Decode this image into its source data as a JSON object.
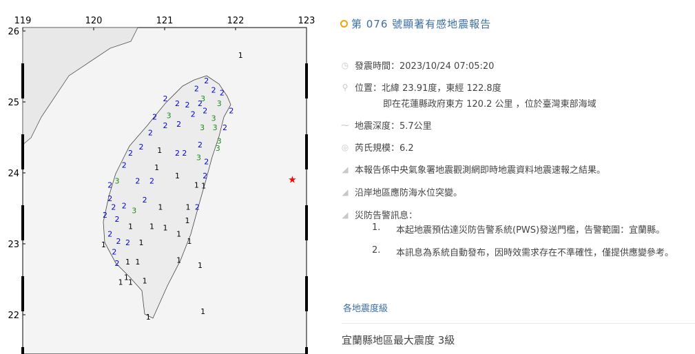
{
  "map": {
    "lon_ticks": [
      "119",
      "120",
      "121",
      "122",
      "123"
    ],
    "lat_ticks": [
      "26",
      "25",
      "24",
      "23",
      "22"
    ],
    "epicenter": {
      "lon": 122.8,
      "lat": 23.91,
      "color": "#ff0000"
    },
    "intensity_colors": {
      "1": "#000000",
      "2": "#0000dd",
      "3": "#1a8a1a"
    },
    "stations": [
      [
        122.07,
        25.66,
        1
      ],
      [
        121.59,
        25.3,
        2
      ],
      [
        121.45,
        25.19,
        2
      ],
      [
        121.69,
        25.17,
        2
      ],
      [
        121.81,
        25.13,
        2
      ],
      [
        121.54,
        25.05,
        3
      ],
      [
        121.01,
        25.05,
        2
      ],
      [
        121.18,
        24.98,
        2
      ],
      [
        121.32,
        24.96,
        2
      ],
      [
        121.5,
        24.98,
        2
      ],
      [
        121.77,
        24.98,
        3
      ],
      [
        121.94,
        24.88,
        2
      ],
      [
        121.06,
        24.81,
        3
      ],
      [
        120.86,
        24.79,
        2
      ],
      [
        121.01,
        24.67,
        2
      ],
      [
        121.2,
        24.69,
        2
      ],
      [
        121.4,
        24.83,
        2
      ],
      [
        121.57,
        24.88,
        2
      ],
      [
        121.69,
        24.77,
        3
      ],
      [
        121.53,
        24.64,
        3
      ],
      [
        121.71,
        24.64,
        3
      ],
      [
        121.85,
        24.64,
        2
      ],
      [
        120.8,
        24.57,
        2
      ],
      [
        120.67,
        24.37,
        2
      ],
      [
        120.93,
        24.32,
        1
      ],
      [
        121.18,
        24.28,
        2
      ],
      [
        121.28,
        24.28,
        2
      ],
      [
        121.5,
        24.4,
        2
      ],
      [
        121.77,
        24.45,
        3
      ],
      [
        121.75,
        24.35,
        3
      ],
      [
        120.52,
        24.28,
        2
      ],
      [
        120.43,
        24.11,
        2
      ],
      [
        120.89,
        24.08,
        1
      ],
      [
        121.18,
        23.96,
        1
      ],
      [
        121.48,
        24.22,
        3
      ],
      [
        121.59,
        24.16,
        2
      ],
      [
        121.57,
        23.96,
        2
      ],
      [
        120.33,
        23.89,
        3
      ],
      [
        120.23,
        23.83,
        2
      ],
      [
        120.62,
        23.89,
        2
      ],
      [
        120.82,
        23.89,
        2
      ],
      [
        121.45,
        23.83,
        1
      ],
      [
        121.55,
        23.82,
        1
      ],
      [
        120.23,
        23.64,
        2
      ],
      [
        120.28,
        23.52,
        2
      ],
      [
        120.43,
        23.54,
        2
      ],
      [
        120.57,
        23.47,
        3
      ],
      [
        120.72,
        23.62,
        2
      ],
      [
        120.94,
        23.52,
        1
      ],
      [
        121.33,
        23.52,
        1
      ],
      [
        121.46,
        23.52,
        2
      ],
      [
        120.16,
        23.41,
        2
      ],
      [
        120.33,
        23.35,
        2
      ],
      [
        120.52,
        23.25,
        1
      ],
      [
        120.82,
        23.25,
        1
      ],
      [
        121.01,
        23.23,
        1
      ],
      [
        121.32,
        23.33,
        1
      ],
      [
        120.23,
        23.14,
        2
      ],
      [
        120.35,
        23.04,
        2
      ],
      [
        121.2,
        23.14,
        1
      ],
      [
        120.48,
        23.02,
        2
      ],
      [
        120.67,
        23.02,
        1
      ],
      [
        121.35,
        23.04,
        1
      ],
      [
        120.14,
        22.99,
        1
      ],
      [
        120.29,
        22.89,
        2
      ],
      [
        121.2,
        22.77,
        1
      ],
      [
        120.33,
        22.73,
        2
      ],
      [
        120.48,
        22.75,
        1
      ],
      [
        120.62,
        22.75,
        1
      ],
      [
        121.5,
        22.7,
        1
      ],
      [
        120.46,
        22.53,
        1
      ],
      [
        120.38,
        22.46,
        1
      ],
      [
        120.52,
        22.46,
        1
      ],
      [
        120.72,
        22.48,
        1
      ],
      [
        120.77,
        21.97,
        1
      ],
      [
        121.54,
        22.05,
        1
      ]
    ]
  },
  "report": {
    "title": "第 076 號顯著有感地震報告",
    "time_label": "發震時間：2023/10/24 07:05:20",
    "location_label": "位置：北緯 23.91度，東經 122.8度",
    "location_detail": "即在花蓮縣政府東方 120.2 公里 ，位於臺灣東部海域",
    "depth_label": "地震深度：5.7公里",
    "magnitude_label": "芮氏規模：6.2",
    "notes": [
      "本報告係中央氣象署地震觀測網即時地震資料地震速報之結果。",
      "沿岸地區應防海水位突變。",
      "災防告警訊息："
    ],
    "alerts": [
      {
        "n": "1.",
        "text": "本起地震預估達災防告警系統(PWS)發送門檻，告警範圍：宜蘭縣。"
      },
      {
        "n": "2.",
        "text": "本訊息為系統自動發布，因時效需求存在不準確性，僅提供應變參考。"
      }
    ],
    "intensity_link": "各地震度級",
    "max_intensity": "宜蘭縣地區最大震度 3級"
  }
}
